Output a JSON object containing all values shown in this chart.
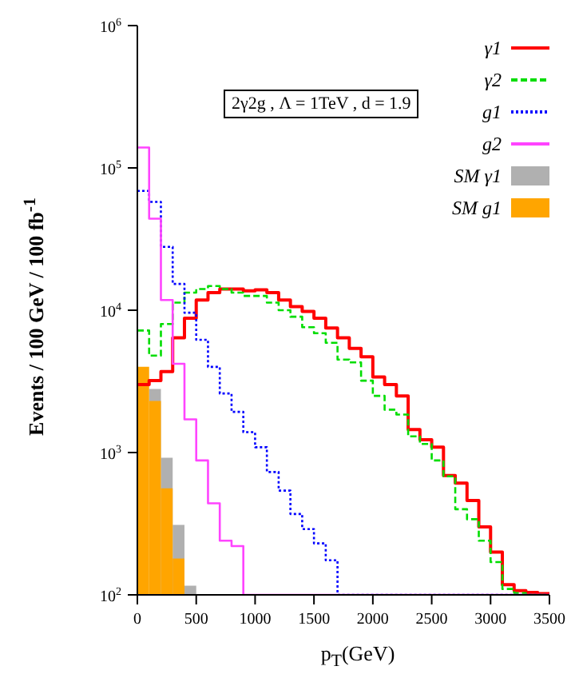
{
  "chart_data": {
    "type": "histogram",
    "xlabel": "p$_{T}$(GeV)",
    "ylabel": "Events / 100 GeV / 100 fb$^{-1}$",
    "annotations": [
      "2γ2g , Λ = 1TeV , d = 1.9"
    ],
    "bins": [
      0,
      100,
      200,
      300,
      400,
      500,
      600,
      700,
      800,
      900,
      1000,
      1100,
      1200,
      1300,
      1400,
      1500,
      1600,
      1700,
      1800,
      1900,
      2000,
      2100,
      2200,
      2300,
      2400,
      2500,
      2600,
      2700,
      2800,
      2900,
      3000,
      3100,
      3200,
      3300,
      3400,
      3500
    ],
    "series": [
      {
        "name": "γ1",
        "color": "#ff0000",
        "line_style": "solid",
        "values": [
          3000,
          3200,
          3700,
          6400,
          8800,
          11800,
          13300,
          14100,
          14100,
          13700,
          13900,
          13300,
          11800,
          10600,
          9800,
          8800,
          7500,
          6400,
          5400,
          4700,
          3400,
          3000,
          2500,
          1450,
          1230,
          1090,
          690,
          610,
          460,
          300,
          200,
          118,
          107,
          104,
          102
        ]
      },
      {
        "name": "γ2",
        "color": "#00dd00",
        "line_style": "dashed",
        "values": [
          7200,
          4800,
          8000,
          11300,
          13300,
          14100,
          14800,
          14100,
          13300,
          12600,
          12600,
          11300,
          10000,
          9000,
          7600,
          6900,
          5900,
          4500,
          4300,
          3200,
          2500,
          2000,
          1850,
          1300,
          1150,
          880,
          680,
          400,
          340,
          240,
          170,
          110,
          103,
          null,
          null
        ]
      },
      {
        "name": "g1",
        "color": "#0000ff",
        "line_style": "dotted",
        "values": [
          69000,
          57700,
          27900,
          15300,
          9600,
          6200,
          4000,
          2600,
          1930,
          1390,
          1090,
          730,
          540,
          370,
          290,
          230,
          175,
          null,
          null,
          null,
          null,
          null,
          null,
          null,
          null,
          null,
          null,
          null,
          null,
          null,
          null,
          null,
          null,
          null,
          null
        ]
      },
      {
        "name": "g2",
        "color": "#ff44ff",
        "line_style": "solid",
        "values": [
          139000,
          44000,
          11800,
          4200,
          1710,
          880,
          440,
          240,
          220,
          null,
          null,
          null,
          null,
          null,
          null,
          null,
          null,
          null,
          null,
          null,
          null,
          null,
          null,
          null,
          null,
          null,
          null,
          null,
          null,
          null,
          null,
          null,
          null,
          null,
          null
        ]
      },
      {
        "name": "SM γ1",
        "color": "#b0b0b0",
        "values": [
          null,
          2800,
          920,
          310,
          116,
          null,
          null,
          null,
          null,
          null,
          null,
          null,
          null,
          null,
          null,
          null,
          null,
          null,
          null,
          null,
          null,
          null,
          null,
          null,
          null,
          null,
          null,
          null,
          null,
          null,
          null,
          null,
          null,
          null,
          null
        ]
      },
      {
        "name": "SM g1",
        "color": "#ffa500",
        "values": [
          4000,
          2300,
          560,
          180,
          null,
          null,
          null,
          null,
          null,
          null,
          null,
          null,
          null,
          null,
          null,
          null,
          null,
          null,
          null,
          null,
          null,
          null,
          null,
          null,
          null,
          null,
          null,
          null,
          null,
          null,
          null,
          null,
          null,
          null,
          null
        ]
      }
    ],
    "log": "y",
    "xlim": [
      0,
      3500
    ],
    "xticks": [
      0,
      500,
      1000,
      1500,
      2000,
      2500,
      3000,
      3500
    ],
    "ylim": [
      100,
      1000000
    ],
    "yticks": [
      {
        "value": 100,
        "label": "10$^{2}$"
      },
      {
        "value": 1000,
        "label": "10$^{3}$"
      },
      {
        "value": 10000,
        "label": "10$^{4}$"
      },
      {
        "value": 100000,
        "label": "10$^{5}$"
      },
      {
        "value": 1000000,
        "label": "10$^{6}$"
      }
    ],
    "grid": false,
    "legend": "top right"
  }
}
